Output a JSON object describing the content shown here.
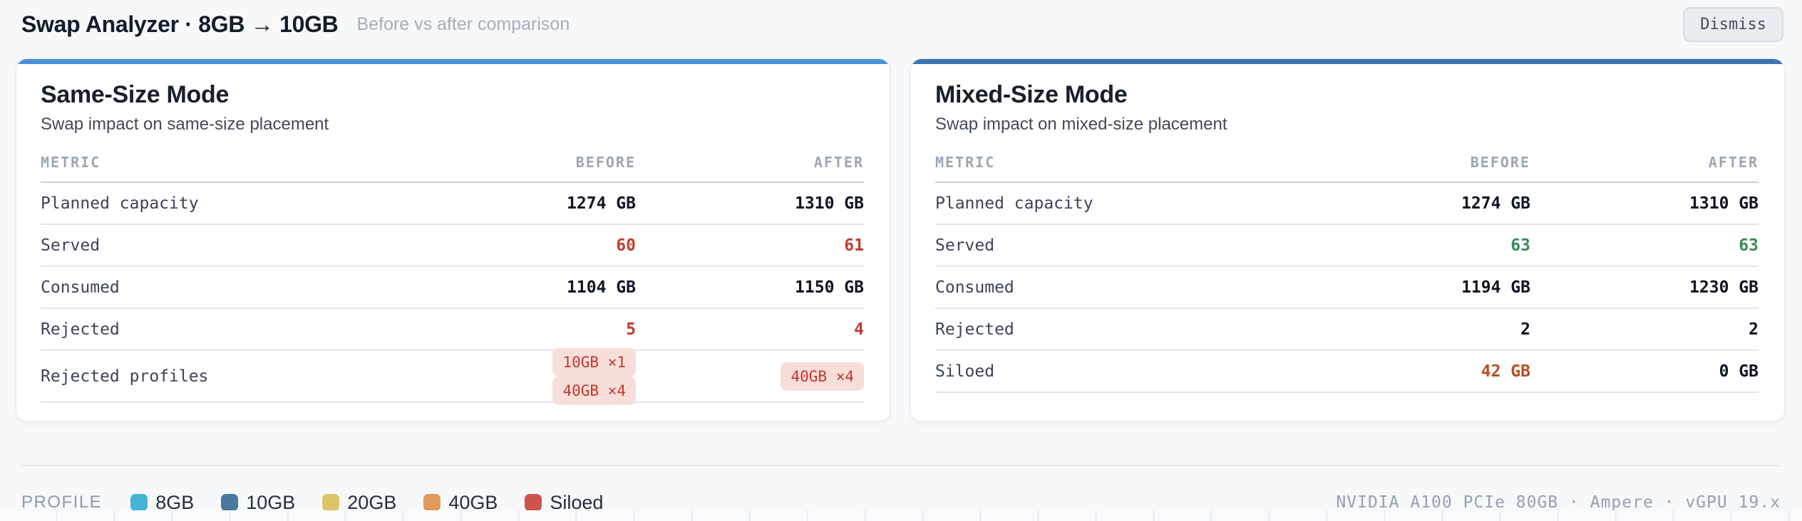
{
  "header": {
    "title": "Swap Analyzer · 8GB → 10GB",
    "subtitle": "Before vs after comparison",
    "dismiss_label": "Dismiss"
  },
  "cards": [
    {
      "accent_color": "#4b90d6",
      "title": "Same-Size Mode",
      "subtitle": "Swap impact on same-size placement",
      "columns": [
        "METRIC",
        "BEFORE",
        "AFTER"
      ],
      "rows": [
        {
          "metric": "Planned capacity",
          "before": "1274 GB",
          "after": "1310 GB",
          "before_tone": "default",
          "after_tone": "default"
        },
        {
          "metric": "Served",
          "before": "60",
          "after": "61",
          "before_tone": "danger",
          "after_tone": "danger"
        },
        {
          "metric": "Consumed",
          "before": "1104 GB",
          "after": "1150 GB",
          "before_tone": "default",
          "after_tone": "default"
        },
        {
          "metric": "Rejected",
          "before": "5",
          "after": "4",
          "before_tone": "danger",
          "after_tone": "danger"
        },
        {
          "metric": "Rejected profiles",
          "before_pills": [
            "10GB ×1",
            "40GB ×4"
          ],
          "after_pills": [
            "40GB ×4"
          ]
        }
      ]
    },
    {
      "accent_color": "#3b72b0",
      "title": "Mixed-Size Mode",
      "subtitle": "Swap impact on mixed-size placement",
      "columns": [
        "METRIC",
        "BEFORE",
        "AFTER"
      ],
      "rows": [
        {
          "metric": "Planned capacity",
          "before": "1274 GB",
          "after": "1310 GB",
          "before_tone": "default",
          "after_tone": "default"
        },
        {
          "metric": "Served",
          "before": "63",
          "after": "63",
          "before_tone": "success",
          "after_tone": "success"
        },
        {
          "metric": "Consumed",
          "before": "1194 GB",
          "after": "1230 GB",
          "before_tone": "default",
          "after_tone": "default"
        },
        {
          "metric": "Rejected",
          "before": "2",
          "after": "2",
          "before_tone": "default",
          "after_tone": "default"
        },
        {
          "metric": "Siloed",
          "before": "42 GB",
          "after": "0 GB",
          "before_tone": "warning",
          "after_tone": "default"
        }
      ]
    }
  ],
  "footer": {
    "legend_label": "PROFILE",
    "legend": [
      {
        "label": "8GB",
        "color": "#45b3d6"
      },
      {
        "label": "10GB",
        "color": "#4a789e"
      },
      {
        "label": "20GB",
        "color": "#dcc467"
      },
      {
        "label": "40GB",
        "color": "#e19a58"
      },
      {
        "label": "Siloed",
        "color": "#d0544e"
      }
    ],
    "gpu_info": "NVIDIA A100 PCIe 80GB · Ampere · vGPU 19.x"
  }
}
